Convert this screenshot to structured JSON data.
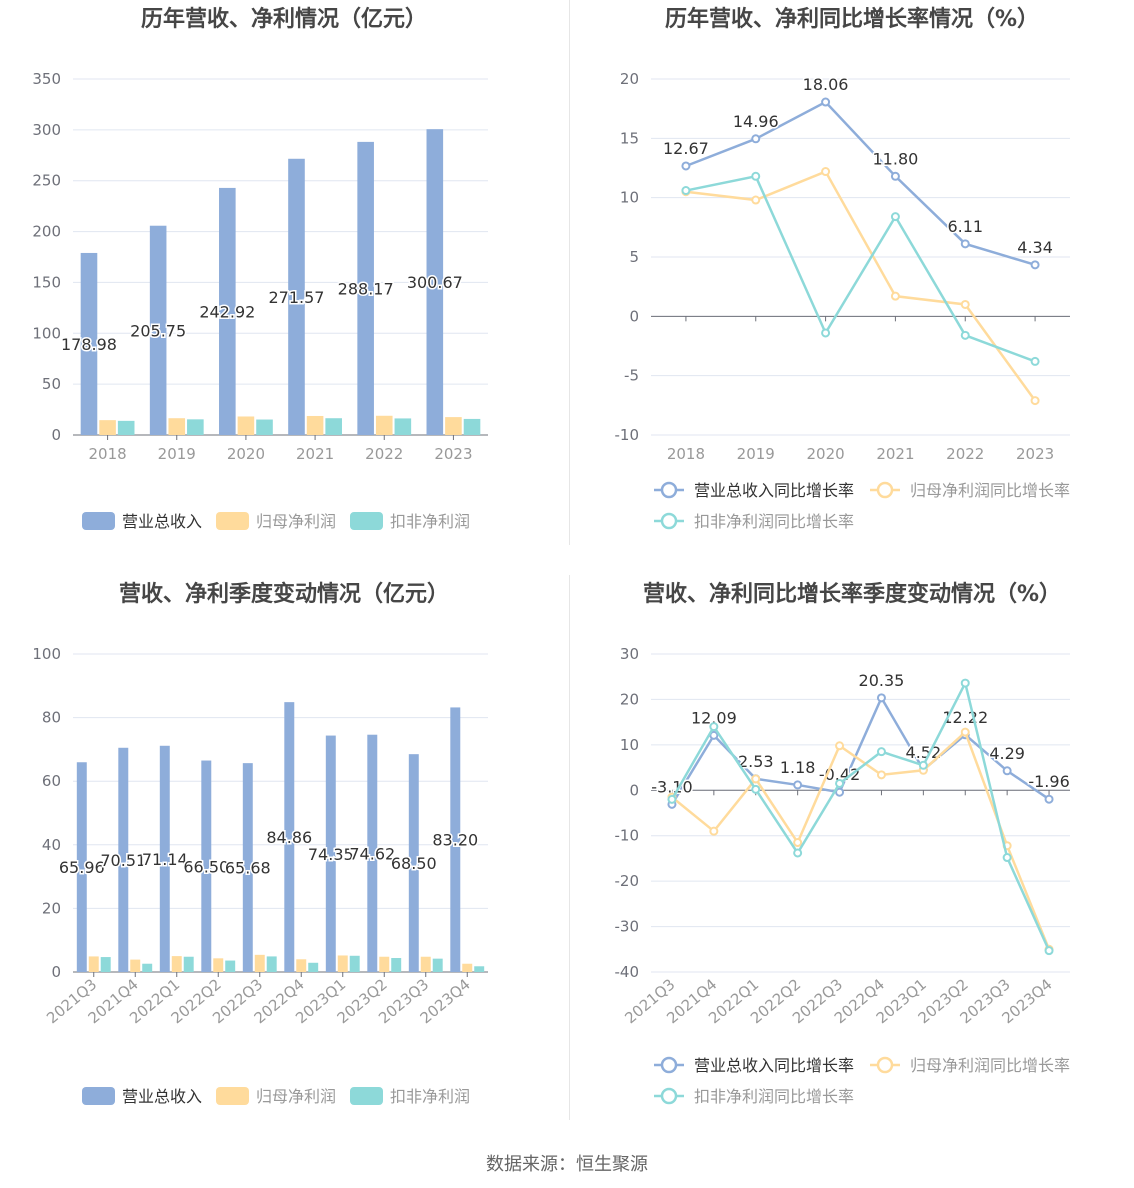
{
  "footer": {
    "source": "数据来源：恒生聚源"
  },
  "colors": {
    "revenue": "#8eadda",
    "net_profit": "#ffdb9c",
    "deducted_profit": "#8dd9d9",
    "axis": "#6e7079",
    "grid": "#e0e6f1",
    "title": "#464646"
  },
  "chart_data": [
    {
      "id": "annual_amounts",
      "type": "bar",
      "title": "历年营收、净利情况（亿元）",
      "categories": [
        "2018",
        "2019",
        "2020",
        "2021",
        "2022",
        "2023"
      ],
      "ylim": [
        0,
        350
      ],
      "yticks": [
        0,
        50,
        100,
        150,
        200,
        250,
        300,
        350
      ],
      "label_series": 0,
      "series": [
        {
          "name": "营业总收入",
          "values": [
            178.98,
            205.75,
            242.92,
            271.57,
            288.17,
            300.67
          ]
        },
        {
          "name": "归母净利润",
          "values": [
            14.6,
            16.5,
            18.2,
            18.7,
            18.9,
            17.6
          ]
        },
        {
          "name": "扣非净利润",
          "values": [
            13.9,
            15.4,
            15.2,
            16.5,
            16.3,
            15.8
          ]
        }
      ]
    },
    {
      "id": "annual_growth",
      "type": "line",
      "title": "历年营收、净利同比增长率情况（%）",
      "categories": [
        "2018",
        "2019",
        "2020",
        "2021",
        "2022",
        "2023"
      ],
      "ylim": [
        -10,
        20
      ],
      "yticks": [
        -10,
        -5,
        0,
        5,
        10,
        15,
        20
      ],
      "label_series": 0,
      "series": [
        {
          "name": "营业总收入同比增长率",
          "values": [
            12.67,
            14.96,
            18.06,
            11.8,
            6.11,
            4.34
          ]
        },
        {
          "name": "归母净利润同比增长率",
          "values": [
            10.5,
            9.8,
            12.2,
            1.7,
            1.0,
            -7.1
          ]
        },
        {
          "name": "扣非净利润同比增长率",
          "values": [
            10.6,
            11.8,
            -1.4,
            8.4,
            -1.6,
            -3.8
          ]
        }
      ]
    },
    {
      "id": "quarterly_amounts",
      "type": "bar",
      "title": "营收、净利季度变动情况（亿元）",
      "categories": [
        "2021Q3",
        "2021Q4",
        "2022Q1",
        "2022Q2",
        "2022Q3",
        "2022Q4",
        "2023Q1",
        "2023Q2",
        "2023Q3",
        "2023Q4"
      ],
      "ylim": [
        0,
        100
      ],
      "yticks": [
        0,
        20,
        40,
        60,
        80,
        100
      ],
      "label_series": 0,
      "series": [
        {
          "name": "营业总收入",
          "values": [
            65.96,
            70.51,
            71.14,
            66.5,
            65.68,
            84.86,
            74.35,
            74.62,
            68.5,
            83.2
          ]
        },
        {
          "name": "归母净利润",
          "values": [
            4.9,
            3.9,
            5.0,
            4.3,
            5.4,
            4.0,
            5.2,
            4.8,
            4.8,
            2.6
          ]
        },
        {
          "name": "扣非净利润",
          "values": [
            4.7,
            2.6,
            4.8,
            3.6,
            4.9,
            2.9,
            5.1,
            4.4,
            4.2,
            1.8
          ]
        }
      ]
    },
    {
      "id": "quarterly_growth",
      "type": "line",
      "title": "营收、净利同比增长率季度变动情况（%）",
      "categories": [
        "2021Q3",
        "2021Q4",
        "2022Q1",
        "2022Q2",
        "2022Q3",
        "2022Q4",
        "2023Q1",
        "2023Q2",
        "2023Q3",
        "2023Q4"
      ],
      "ylim": [
        -40,
        30
      ],
      "yticks": [
        -40,
        -30,
        -20,
        -10,
        0,
        10,
        20,
        30
      ],
      "label_series": 0,
      "series": [
        {
          "name": "营业总收入同比增长率",
          "values": [
            -3.1,
            12.09,
            2.53,
            1.18,
            -0.42,
            20.35,
            4.52,
            12.22,
            4.29,
            -1.96
          ]
        },
        {
          "name": "归母净利润同比增长率",
          "values": [
            -1.5,
            -9.0,
            2.5,
            -11.5,
            9.8,
            3.4,
            4.4,
            12.8,
            -12.2,
            -35.0
          ]
        },
        {
          "name": "扣非净利润同比增长率",
          "values": [
            -2.0,
            14.0,
            0.2,
            -13.8,
            1.5,
            8.5,
            5.5,
            23.6,
            -14.8,
            -35.3
          ]
        }
      ]
    }
  ]
}
